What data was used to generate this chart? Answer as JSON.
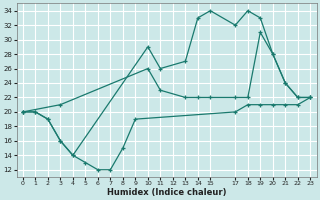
{
  "line1_x": [
    0,
    1,
    2,
    3,
    4,
    10,
    11,
    13,
    14,
    15,
    17,
    18,
    19,
    20,
    21,
    22,
    23
  ],
  "line1_y": [
    20,
    20,
    19,
    16,
    14,
    29,
    26,
    27,
    33,
    34,
    32,
    34,
    33,
    28,
    24,
    22,
    22
  ],
  "line2_x": [
    0,
    3,
    10,
    11,
    13,
    14,
    15,
    17,
    18,
    19,
    20,
    21,
    22,
    23
  ],
  "line2_y": [
    20,
    21,
    26,
    23,
    22,
    22,
    22,
    22,
    22,
    31,
    28,
    24,
    22,
    22
  ],
  "line3_x": [
    0,
    1,
    2,
    3,
    4,
    5,
    6,
    7,
    8,
    9,
    17,
    18,
    19,
    20,
    21,
    22,
    23
  ],
  "line3_y": [
    20,
    20,
    19,
    16,
    14,
    13,
    12,
    12,
    15,
    19,
    20,
    21,
    21,
    21,
    21,
    21,
    22
  ],
  "color": "#1a7a6e",
  "bg_color": "#cce8e8",
  "grid_color": "#ffffff",
  "xlabel": "Humidex (Indice chaleur)",
  "ylim": [
    11,
    35
  ],
  "xlim": [
    -0.5,
    23.5
  ],
  "yticks": [
    12,
    14,
    16,
    18,
    20,
    22,
    24,
    26,
    28,
    30,
    32,
    34
  ],
  "xticks": [
    0,
    1,
    2,
    3,
    4,
    5,
    6,
    7,
    8,
    9,
    10,
    11,
    12,
    13,
    14,
    15,
    17,
    18,
    19,
    20,
    21,
    22,
    23
  ]
}
